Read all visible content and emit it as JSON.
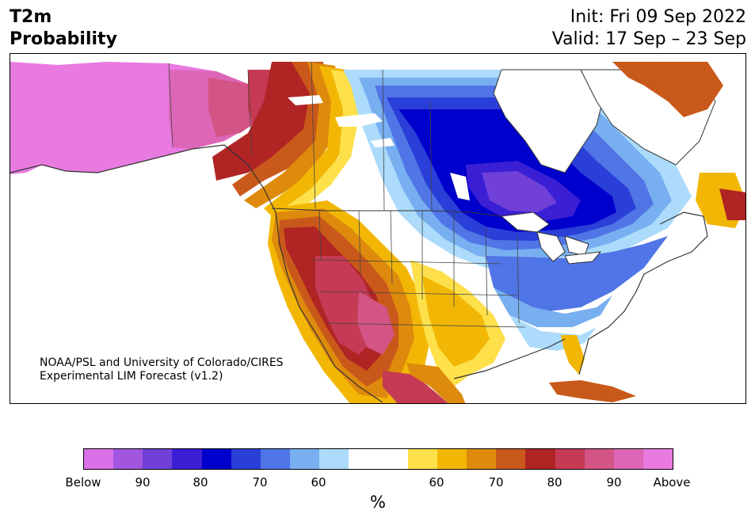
{
  "header": {
    "variable": "T2m",
    "product": "Probability",
    "init": "Init: Fri 09 Sep 2022",
    "valid": "Valid: 17 Sep – 23 Sep"
  },
  "credit": {
    "line1": "NOAA/PSL and University of Colorado/CIRES",
    "line2": "Experimental LIM Forecast (v1.2)"
  },
  "colorbar": {
    "unit": "%",
    "colors": [
      "#d970e8",
      "#a256e0",
      "#7040d8",
      "#3a1fd4",
      "#0000cc",
      "#2a3fd8",
      "#5075e6",
      "#78aff0",
      "#acdbfb",
      "#ffffff",
      "#ffffff",
      "#fde04a",
      "#f2b705",
      "#de8a0c",
      "#c9591a",
      "#b02424",
      "#c53a54",
      "#d35585",
      "#de66b8",
      "#e87ae0"
    ],
    "labels": [
      "Below",
      "90",
      "80",
      "70",
      "60",
      "60",
      "70",
      "80",
      "90",
      "Above"
    ]
  },
  "legend_meaning": {
    "below_colors": "purple-blue = probability of below-normal temperature",
    "above_colors": "yellow-red-pink = probability of above-normal temperature"
  }
}
